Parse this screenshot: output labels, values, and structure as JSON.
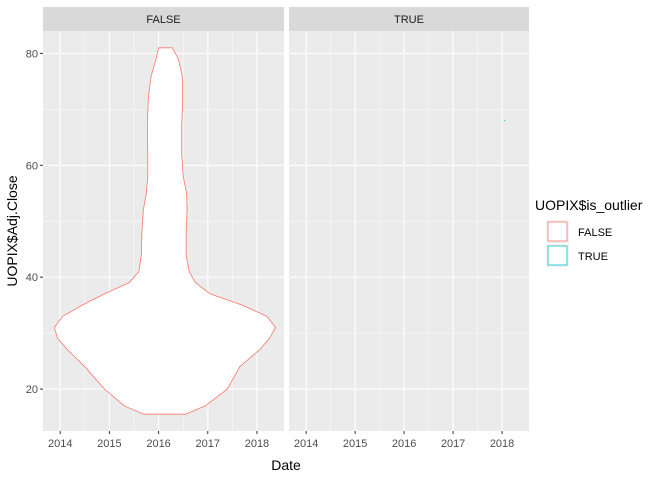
{
  "chart_data": {
    "type": "violin",
    "xlabel": "Date",
    "ylabel": "UOPIX$Adj.Close",
    "x_ticks": [
      "2014",
      "2015",
      "2016",
      "2017",
      "2018"
    ],
    "xlim": [
      2013.65,
      2018.55
    ],
    "y_ticks": [
      20,
      40,
      60,
      80
    ],
    "ylim": [
      12.5,
      84
    ],
    "grid": true,
    "legend": {
      "title": "UOPIX$is_outlier",
      "position": "right",
      "entries": [
        {
          "label": "FALSE",
          "color": "#F8766D"
        },
        {
          "label": "TRUE",
          "color": "#00BFC4"
        }
      ]
    },
    "panels": [
      {
        "strip": "FALSE",
        "center_x": 2016.0,
        "color": "#F8766D",
        "fill": "#ffffff",
        "y_range": [
          15.5,
          81
        ],
        "profile": [
          {
            "y": 15.5,
            "left": 2015.7,
            "right": 2016.55
          },
          {
            "y": 17,
            "left": 2015.3,
            "right": 2016.95
          },
          {
            "y": 20,
            "left": 2014.9,
            "right": 2017.4
          },
          {
            "y": 24,
            "left": 2014.5,
            "right": 2017.65
          },
          {
            "y": 27,
            "left": 2014.15,
            "right": 2018.05
          },
          {
            "y": 29,
            "left": 2013.95,
            "right": 2018.25
          },
          {
            "y": 31,
            "left": 2013.88,
            "right": 2018.38
          },
          {
            "y": 33,
            "left": 2014.05,
            "right": 2018.2
          },
          {
            "y": 35,
            "left": 2014.45,
            "right": 2017.7
          },
          {
            "y": 37,
            "left": 2014.9,
            "right": 2017.05
          },
          {
            "y": 39,
            "left": 2015.4,
            "right": 2016.75
          },
          {
            "y": 41,
            "left": 2015.6,
            "right": 2016.62
          },
          {
            "y": 44,
            "left": 2015.65,
            "right": 2016.56
          },
          {
            "y": 48,
            "left": 2015.66,
            "right": 2016.56
          },
          {
            "y": 52,
            "left": 2015.69,
            "right": 2016.58
          },
          {
            "y": 55,
            "left": 2015.75,
            "right": 2016.57
          },
          {
            "y": 58,
            "left": 2015.78,
            "right": 2016.5
          },
          {
            "y": 62,
            "left": 2015.78,
            "right": 2016.47
          },
          {
            "y": 67,
            "left": 2015.77,
            "right": 2016.47
          },
          {
            "y": 72,
            "left": 2015.79,
            "right": 2016.49
          },
          {
            "y": 76,
            "left": 2015.85,
            "right": 2016.48
          },
          {
            "y": 79,
            "left": 2015.95,
            "right": 2016.4
          },
          {
            "y": 81,
            "left": 2016.0,
            "right": 2016.28
          }
        ]
      },
      {
        "strip": "TRUE",
        "color": "#00BFC4",
        "points": [
          {
            "x": 2018.05,
            "y": 68
          }
        ]
      }
    ]
  }
}
